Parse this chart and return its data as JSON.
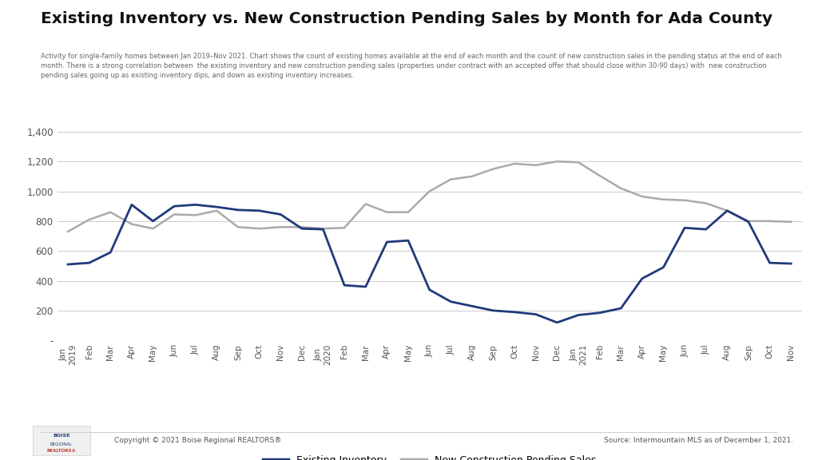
{
  "title": "Existing Inventory vs. New Construction Pending Sales by Month for Ada County",
  "subtitle": "Activity for single-family homes between Jan 2019–Nov 2021. Chart shows the count of existing homes available at the end of each month and the count of new construction sales in the pending status at the end of each month. There is a strong correlation between  the existing inventory and new construction pending sales (properties under contract with an accepted offer that should close within 30-90 days) with  new construction pending sales going up as existing inventory dips, and down as existing inventory increases.",
  "footer_left": "Copyright © 2021 Boise Regional REALTORS®",
  "footer_right": "Source: Intermountain MLS as of December 1, 2021.",
  "x_labels": [
    "Jan\n2019",
    "Feb",
    "Mar",
    "Apr",
    "May",
    "Jun",
    "Jul",
    "Aug",
    "Sep",
    "Oct",
    "Nov",
    "Dec",
    "Jan\n2020",
    "Feb",
    "Mar",
    "Apr",
    "May",
    "Jun",
    "Jul",
    "Aug",
    "Sep",
    "Oct",
    "Nov",
    "Dec",
    "Jan\n2021",
    "Feb",
    "Mar",
    "Apr",
    "May",
    "Jun",
    "Jul",
    "Aug",
    "Sep",
    "Oct",
    "Nov"
  ],
  "existing_inventory": [
    510,
    520,
    590,
    910,
    800,
    900,
    910,
    895,
    875,
    870,
    845,
    750,
    745,
    370,
    360,
    660,
    670,
    340,
    260,
    230,
    200,
    190,
    175,
    120,
    170,
    185,
    215,
    415,
    490,
    755,
    745,
    870,
    795,
    520,
    515
  ],
  "new_const_pending": [
    730,
    810,
    860,
    780,
    750,
    845,
    840,
    870,
    760,
    750,
    760,
    760,
    750,
    755,
    915,
    860,
    860,
    1000,
    1080,
    1100,
    1150,
    1185,
    1175,
    1200,
    1195,
    1105,
    1020,
    965,
    945,
    940,
    920,
    870,
    800,
    800,
    795
  ],
  "existing_color": "#1f3a7a",
  "new_const_color": "#aaaaaa",
  "background_color": "#ffffff",
  "grid_color": "#cccccc",
  "ylim": [
    0,
    1450
  ],
  "yticks": [
    0,
    200,
    400,
    600,
    800,
    1000,
    1200,
    1400
  ],
  "ytick_labels": [
    "-",
    "200",
    "400",
    "600",
    "800",
    "1,000",
    "1,200",
    "1,400"
  ]
}
